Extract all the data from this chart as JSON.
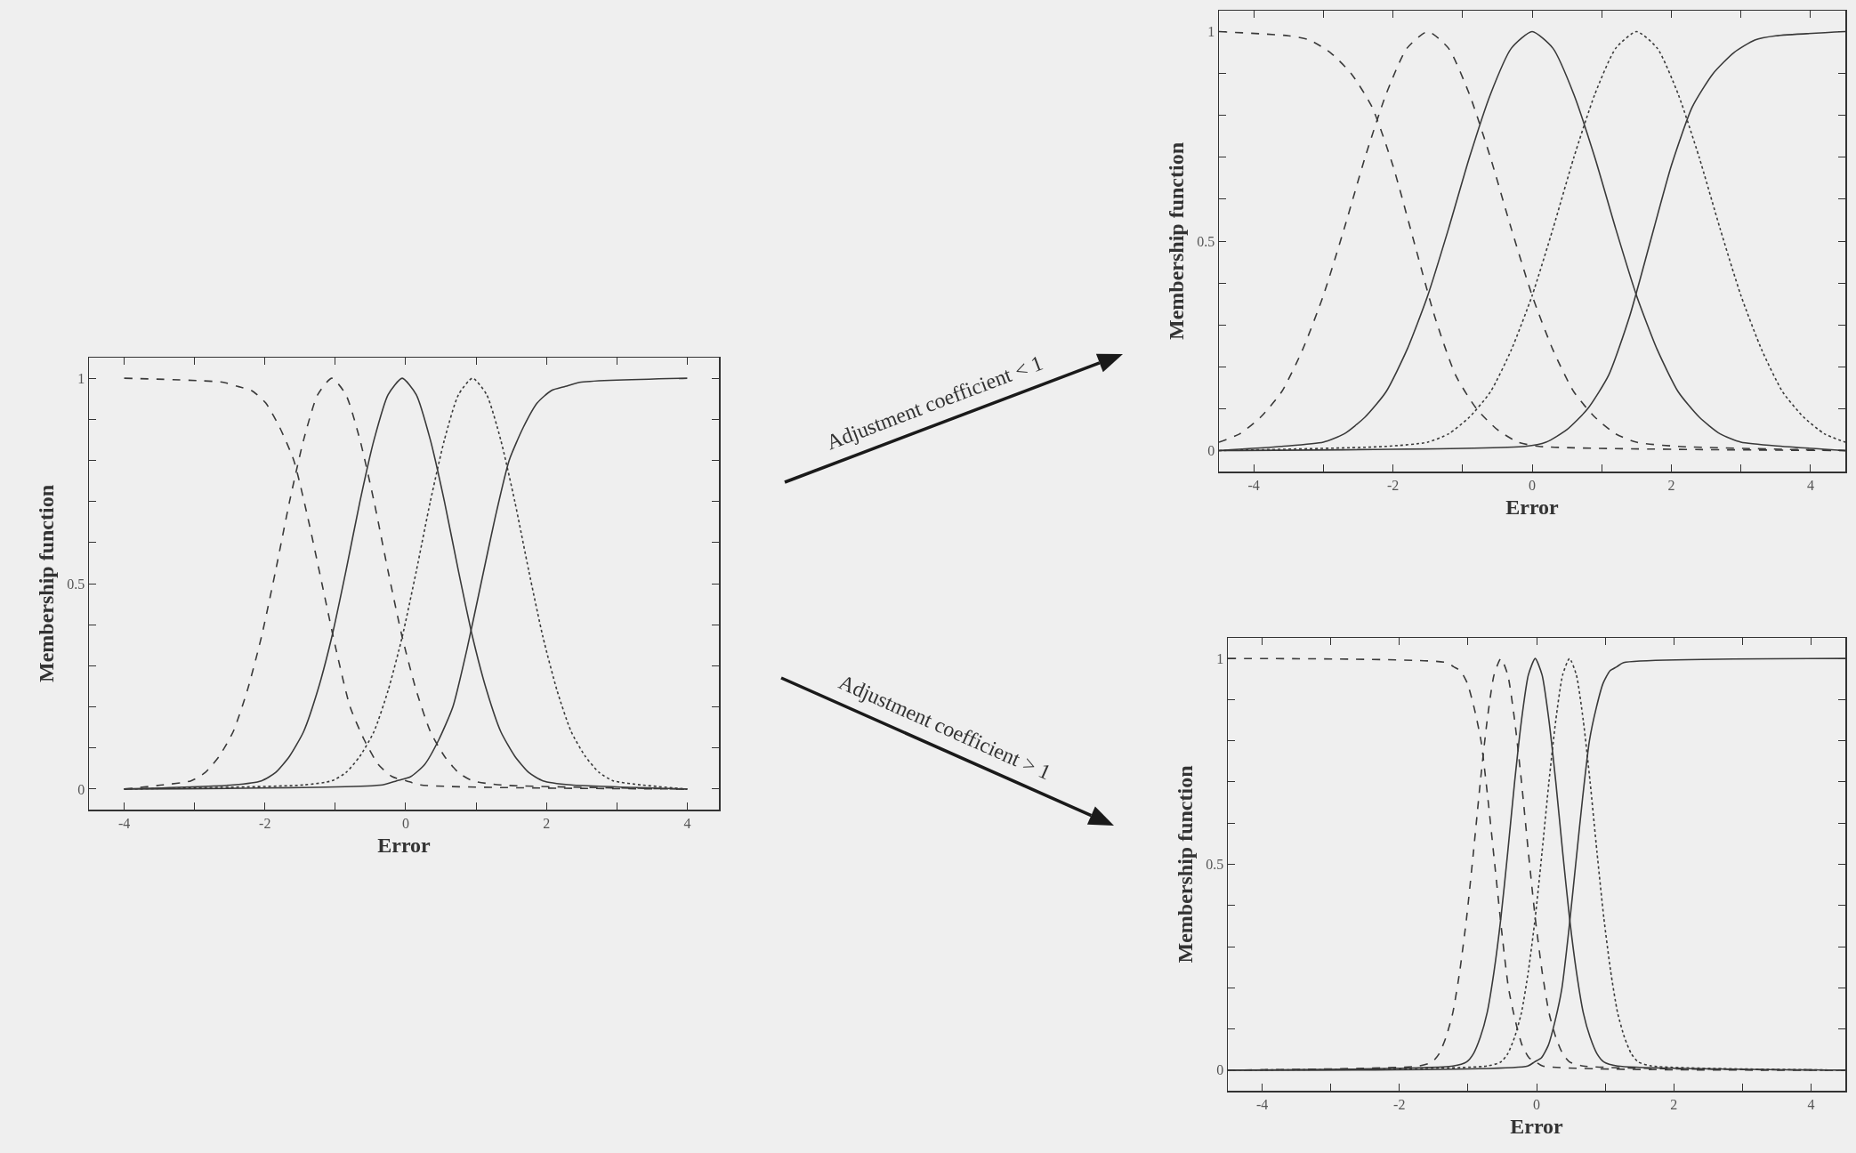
{
  "chart_data": [
    {
      "type": "line",
      "xlabel": "Error",
      "ylabel": "Membership function",
      "xlim": [
        -4.5,
        4.45
      ],
      "ylim": [
        -0.05,
        1.05
      ],
      "xticks": [
        -4,
        {
          "value": -3,
          "label": null
        },
        -2,
        {
          "value": -1,
          "label": null
        },
        0,
        {
          "value": 1,
          "label": null
        },
        2,
        {
          "value": 3,
          "label": null
        },
        4
      ],
      "yticks": [
        0,
        {
          "value": 0.1,
          "label": null
        },
        {
          "value": 0.2,
          "label": null
        },
        {
          "value": 0.3,
          "label": null
        },
        {
          "value": 0.4,
          "label": null
        },
        0.5,
        {
          "value": 0.6,
          "label": null
        },
        {
          "value": 0.7,
          "label": null
        },
        {
          "value": 0.8,
          "label": null
        },
        {
          "value": 0.9,
          "label": null
        },
        1
      ],
      "annotations": [
        "Adjustment coefficient < 1",
        "Adjustment coefficient > 1"
      ],
      "series": [
        {
          "color": "#3a3a3a",
          "line_style": "dashed",
          "x": [
            -4,
            -2.59,
            -2.39,
            -2.19,
            -1.99,
            -1.79,
            -1.59,
            -1.39,
            -1.19,
            -0.99,
            -0.79,
            -0.59,
            -0.39,
            -0.19,
            0.01,
            0.21,
            4
          ],
          "values": [
            1,
            0.99,
            0.98,
            0.97,
            0.94,
            0.88,
            0.8,
            0.66,
            0.5,
            0.34,
            0.2,
            0.12,
            0.06,
            0.03,
            0.02,
            0.01,
            0
          ]
        },
        {
          "color": "#3a3a3a",
          "line_style": "dashed",
          "x": [
            -4,
            -3.45,
            -3.05,
            -2.85,
            -2.65,
            -2.45,
            -2.25,
            -2.05,
            -1.85,
            -1.65,
            -1.45,
            -1.25,
            -1.05,
            -0.85,
            -0.65,
            -0.45,
            -0.25,
            -0.05,
            0.15,
            0.35,
            0.55,
            0.75,
            0.95,
            1.35,
            4
          ],
          "values": [
            0,
            0.01,
            0.02,
            0.04,
            0.08,
            0.14,
            0.24,
            0.37,
            0.53,
            0.7,
            0.85,
            0.96,
            1,
            0.96,
            0.85,
            0.7,
            0.53,
            0.37,
            0.24,
            0.14,
            0.08,
            0.04,
            0.02,
            0.01,
            0
          ]
        },
        {
          "color": "#3a3a3a",
          "line_style": "solid",
          "x": [
            -4,
            -2.45,
            -2.05,
            -1.85,
            -1.65,
            -1.45,
            -1.25,
            -1.05,
            -0.85,
            -0.65,
            -0.45,
            -0.25,
            -0.05,
            0.15,
            0.35,
            0.55,
            0.75,
            0.95,
            1.15,
            1.35,
            1.55,
            1.75,
            1.95,
            2.35,
            4
          ],
          "values": [
            0,
            0.01,
            0.02,
            0.04,
            0.08,
            0.14,
            0.24,
            0.37,
            0.53,
            0.7,
            0.85,
            0.96,
            1,
            0.96,
            0.85,
            0.7,
            0.53,
            0.37,
            0.24,
            0.14,
            0.08,
            0.04,
            0.02,
            0.01,
            0
          ]
        },
        {
          "color": "#3a3a3a",
          "line_style": "dotted",
          "x": [
            -4,
            -1.45,
            -1.05,
            -0.85,
            -0.65,
            -0.45,
            -0.25,
            -0.05,
            0.15,
            0.35,
            0.55,
            0.75,
            0.95,
            1.15,
            1.35,
            1.55,
            1.75,
            1.95,
            2.15,
            2.35,
            2.55,
            2.75,
            2.95,
            3.35,
            4
          ],
          "values": [
            0,
            0.01,
            0.02,
            0.04,
            0.08,
            0.14,
            0.24,
            0.37,
            0.53,
            0.7,
            0.85,
            0.96,
            1,
            0.96,
            0.85,
            0.7,
            0.53,
            0.37,
            0.24,
            0.14,
            0.08,
            0.04,
            0.02,
            0.01,
            0
          ]
        },
        {
          "color": "#3a3a3a",
          "line_style": "solid",
          "x": [
            -4,
            -0.33,
            -0.13,
            0.07,
            0.27,
            0.47,
            0.67,
            0.87,
            1.07,
            1.27,
            1.47,
            1.67,
            1.87,
            2.07,
            2.27,
            2.47,
            4
          ],
          "values": [
            0,
            0.01,
            0.02,
            0.03,
            0.06,
            0.12,
            0.2,
            0.34,
            0.5,
            0.66,
            0.8,
            0.88,
            0.94,
            0.97,
            0.98,
            0.99,
            1
          ]
        }
      ]
    },
    {
      "type": "line",
      "xlabel": "Error",
      "ylabel": "Membership function",
      "xlim": [
        -4.5,
        4.5
      ],
      "ylim": [
        -0.05,
        1.05
      ],
      "xticks": [
        -4,
        {
          "value": -3,
          "label": null
        },
        -2,
        {
          "value": -1,
          "label": null
        },
        0,
        {
          "value": 1,
          "label": null
        },
        2,
        {
          "value": 3,
          "label": null
        },
        4
      ],
      "yticks": [
        0,
        {
          "value": 0.1,
          "label": null
        },
        {
          "value": 0.2,
          "label": null
        },
        {
          "value": 0.3,
          "label": null
        },
        {
          "value": 0.4,
          "label": null
        },
        0.5,
        {
          "value": 0.6,
          "label": null
        },
        {
          "value": 0.7,
          "label": null
        },
        {
          "value": 0.8,
          "label": null
        },
        {
          "value": 0.9,
          "label": null
        },
        1
      ],
      "series": [
        {
          "color": "#3a3a3a",
          "line_style": "dashed",
          "x": [
            -4.5,
            -3.5,
            -3.2,
            -2.9,
            -2.6,
            -2.3,
            -2,
            -1.7,
            -1.4,
            -1.1,
            -0.8,
            -0.5,
            -0.2,
            0.1,
            4.5
          ],
          "values": [
            1,
            0.99,
            0.98,
            0.95,
            0.9,
            0.82,
            0.68,
            0.5,
            0.32,
            0.18,
            0.1,
            0.05,
            0.02,
            0.01,
            0
          ]
        },
        {
          "color": "#3a3a3a",
          "line_style": "dashed",
          "x": [
            -4.5,
            -4.2,
            -3.9,
            -3.6,
            -3.3,
            -3,
            -2.7,
            -2.4,
            -2.1,
            -1.8,
            -1.5,
            -1.2,
            -0.9,
            -0.6,
            -0.3,
            0,
            0.3,
            0.6,
            0.9,
            1.2,
            1.5,
            2.1,
            4.5
          ],
          "values": [
            0.02,
            0.04,
            0.08,
            0.14,
            0.24,
            0.37,
            0.53,
            0.7,
            0.85,
            0.96,
            1,
            0.96,
            0.85,
            0.7,
            0.53,
            0.37,
            0.24,
            0.14,
            0.08,
            0.04,
            0.02,
            0.01,
            0
          ]
        },
        {
          "color": "#3a3a3a",
          "line_style": "solid",
          "x": [
            -4.5,
            -3.6,
            -3,
            -2.7,
            -2.4,
            -2.1,
            -1.8,
            -1.5,
            -1.2,
            -0.9,
            -0.6,
            -0.3,
            0,
            0.3,
            0.6,
            0.9,
            1.2,
            1.5,
            1.8,
            2.1,
            2.4,
            2.7,
            3,
            3.6,
            4.5
          ],
          "values": [
            0,
            0.01,
            0.02,
            0.04,
            0.08,
            0.14,
            0.24,
            0.37,
            0.53,
            0.7,
            0.85,
            0.96,
            1,
            0.96,
            0.85,
            0.7,
            0.53,
            0.37,
            0.24,
            0.14,
            0.08,
            0.04,
            0.02,
            0.01,
            0
          ]
        },
        {
          "color": "#3a3a3a",
          "line_style": "dotted",
          "x": [
            -4.5,
            -2.1,
            -1.5,
            -1.2,
            -0.9,
            -0.6,
            -0.3,
            0,
            0.3,
            0.6,
            0.9,
            1.2,
            1.5,
            1.8,
            2.1,
            2.4,
            2.7,
            3,
            3.3,
            3.6,
            3.9,
            4.2,
            4.5
          ],
          "values": [
            0,
            0.01,
            0.02,
            0.04,
            0.08,
            0.14,
            0.24,
            0.37,
            0.53,
            0.7,
            0.85,
            0.96,
            1,
            0.96,
            0.85,
            0.7,
            0.53,
            0.37,
            0.24,
            0.14,
            0.08,
            0.04,
            0.02
          ]
        },
        {
          "color": "#3a3a3a",
          "line_style": "solid",
          "x": [
            -4.5,
            -0.1,
            0.2,
            0.5,
            0.8,
            1.1,
            1.4,
            1.7,
            2,
            2.3,
            2.6,
            2.9,
            3.2,
            3.5,
            4.5
          ],
          "values": [
            0,
            0.01,
            0.02,
            0.05,
            0.1,
            0.18,
            0.32,
            0.5,
            0.68,
            0.82,
            0.9,
            0.95,
            0.98,
            0.99,
            1
          ]
        }
      ]
    },
    {
      "type": "line",
      "xlabel": "Error",
      "ylabel": "Membership function",
      "xlim": [
        -4.5,
        4.5
      ],
      "ylim": [
        -0.05,
        1.05
      ],
      "xticks": [
        -4,
        {
          "value": -3,
          "label": null
        },
        -2,
        {
          "value": -1,
          "label": null
        },
        0,
        {
          "value": 1,
          "label": null
        },
        2,
        {
          "value": 3,
          "label": null
        },
        4
      ],
      "yticks": [
        0,
        {
          "value": 0.1,
          "label": null
        },
        {
          "value": 0.2,
          "label": null
        },
        {
          "value": 0.3,
          "label": null
        },
        {
          "value": 0.4,
          "label": null
        },
        0.5,
        {
          "value": 0.6,
          "label": null
        },
        {
          "value": 0.7,
          "label": null
        },
        {
          "value": 0.8,
          "label": null
        },
        {
          "value": 0.9,
          "label": null
        },
        1
      ],
      "series": [
        {
          "color": "#3a3a3a",
          "line_style": "dashed",
          "x": [
            -4.5,
            -1.31,
            -1.21,
            -1.11,
            -1.01,
            -0.91,
            -0.81,
            -0.71,
            -0.61,
            -0.51,
            -0.41,
            -0.31,
            -0.21,
            -0.11,
            -0.01,
            0.09,
            4.5
          ],
          "values": [
            1,
            0.99,
            0.98,
            0.97,
            0.94,
            0.88,
            0.8,
            0.66,
            0.5,
            0.34,
            0.2,
            0.12,
            0.06,
            0.03,
            0.02,
            0.01,
            0
          ]
        },
        {
          "color": "#3a3a3a",
          "line_style": "dashed",
          "x": [
            -4.5,
            -1.72,
            -1.52,
            -1.42,
            -1.32,
            -1.22,
            -1.12,
            -1.02,
            -0.92,
            -0.82,
            -0.72,
            -0.62,
            -0.52,
            -0.42,
            -0.32,
            -0.22,
            -0.12,
            -0.02,
            0.08,
            0.18,
            0.28,
            0.38,
            0.48,
            0.68,
            4.5
          ],
          "values": [
            0,
            0.01,
            0.02,
            0.04,
            0.08,
            0.14,
            0.24,
            0.37,
            0.53,
            0.7,
            0.85,
            0.96,
            1,
            0.96,
            0.85,
            0.7,
            0.53,
            0.37,
            0.24,
            0.14,
            0.08,
            0.04,
            0.02,
            0.01,
            0
          ]
        },
        {
          "color": "#3a3a3a",
          "line_style": "solid",
          "x": [
            -4.5,
            -1.22,
            -1.02,
            -0.92,
            -0.82,
            -0.72,
            -0.62,
            -0.52,
            -0.42,
            -0.32,
            -0.22,
            -0.12,
            -0.02,
            0.08,
            0.18,
            0.28,
            0.38,
            0.48,
            0.58,
            0.68,
            0.78,
            0.88,
            0.98,
            1.18,
            4.5
          ],
          "values": [
            0,
            0.01,
            0.02,
            0.04,
            0.08,
            0.14,
            0.24,
            0.37,
            0.53,
            0.7,
            0.85,
            0.96,
            1,
            0.96,
            0.85,
            0.7,
            0.53,
            0.37,
            0.24,
            0.14,
            0.08,
            0.04,
            0.02,
            0.01,
            0
          ]
        },
        {
          "color": "#3a3a3a",
          "line_style": "dotted",
          "x": [
            -4.5,
            -0.72,
            -0.52,
            -0.42,
            -0.32,
            -0.22,
            -0.12,
            -0.02,
            0.08,
            0.18,
            0.28,
            0.38,
            0.48,
            0.58,
            0.68,
            0.78,
            0.88,
            0.98,
            1.08,
            1.18,
            1.28,
            1.38,
            1.48,
            1.68,
            4.5
          ],
          "values": [
            0,
            0.01,
            0.02,
            0.04,
            0.08,
            0.14,
            0.24,
            0.37,
            0.53,
            0.7,
            0.85,
            0.96,
            1,
            0.96,
            0.85,
            0.7,
            0.53,
            0.37,
            0.24,
            0.14,
            0.08,
            0.04,
            0.02,
            0.01,
            0
          ]
        },
        {
          "color": "#3a3a3a",
          "line_style": "solid",
          "x": [
            -4.5,
            -0.13,
            -0.03,
            0.07,
            0.17,
            0.27,
            0.37,
            0.47,
            0.57,
            0.67,
            0.77,
            0.87,
            0.97,
            1.07,
            1.17,
            1.27,
            4.5
          ],
          "values": [
            0,
            0.01,
            0.02,
            0.03,
            0.06,
            0.12,
            0.2,
            0.34,
            0.5,
            0.66,
            0.8,
            0.88,
            0.94,
            0.97,
            0.98,
            0.99,
            1
          ]
        }
      ]
    }
  ]
}
